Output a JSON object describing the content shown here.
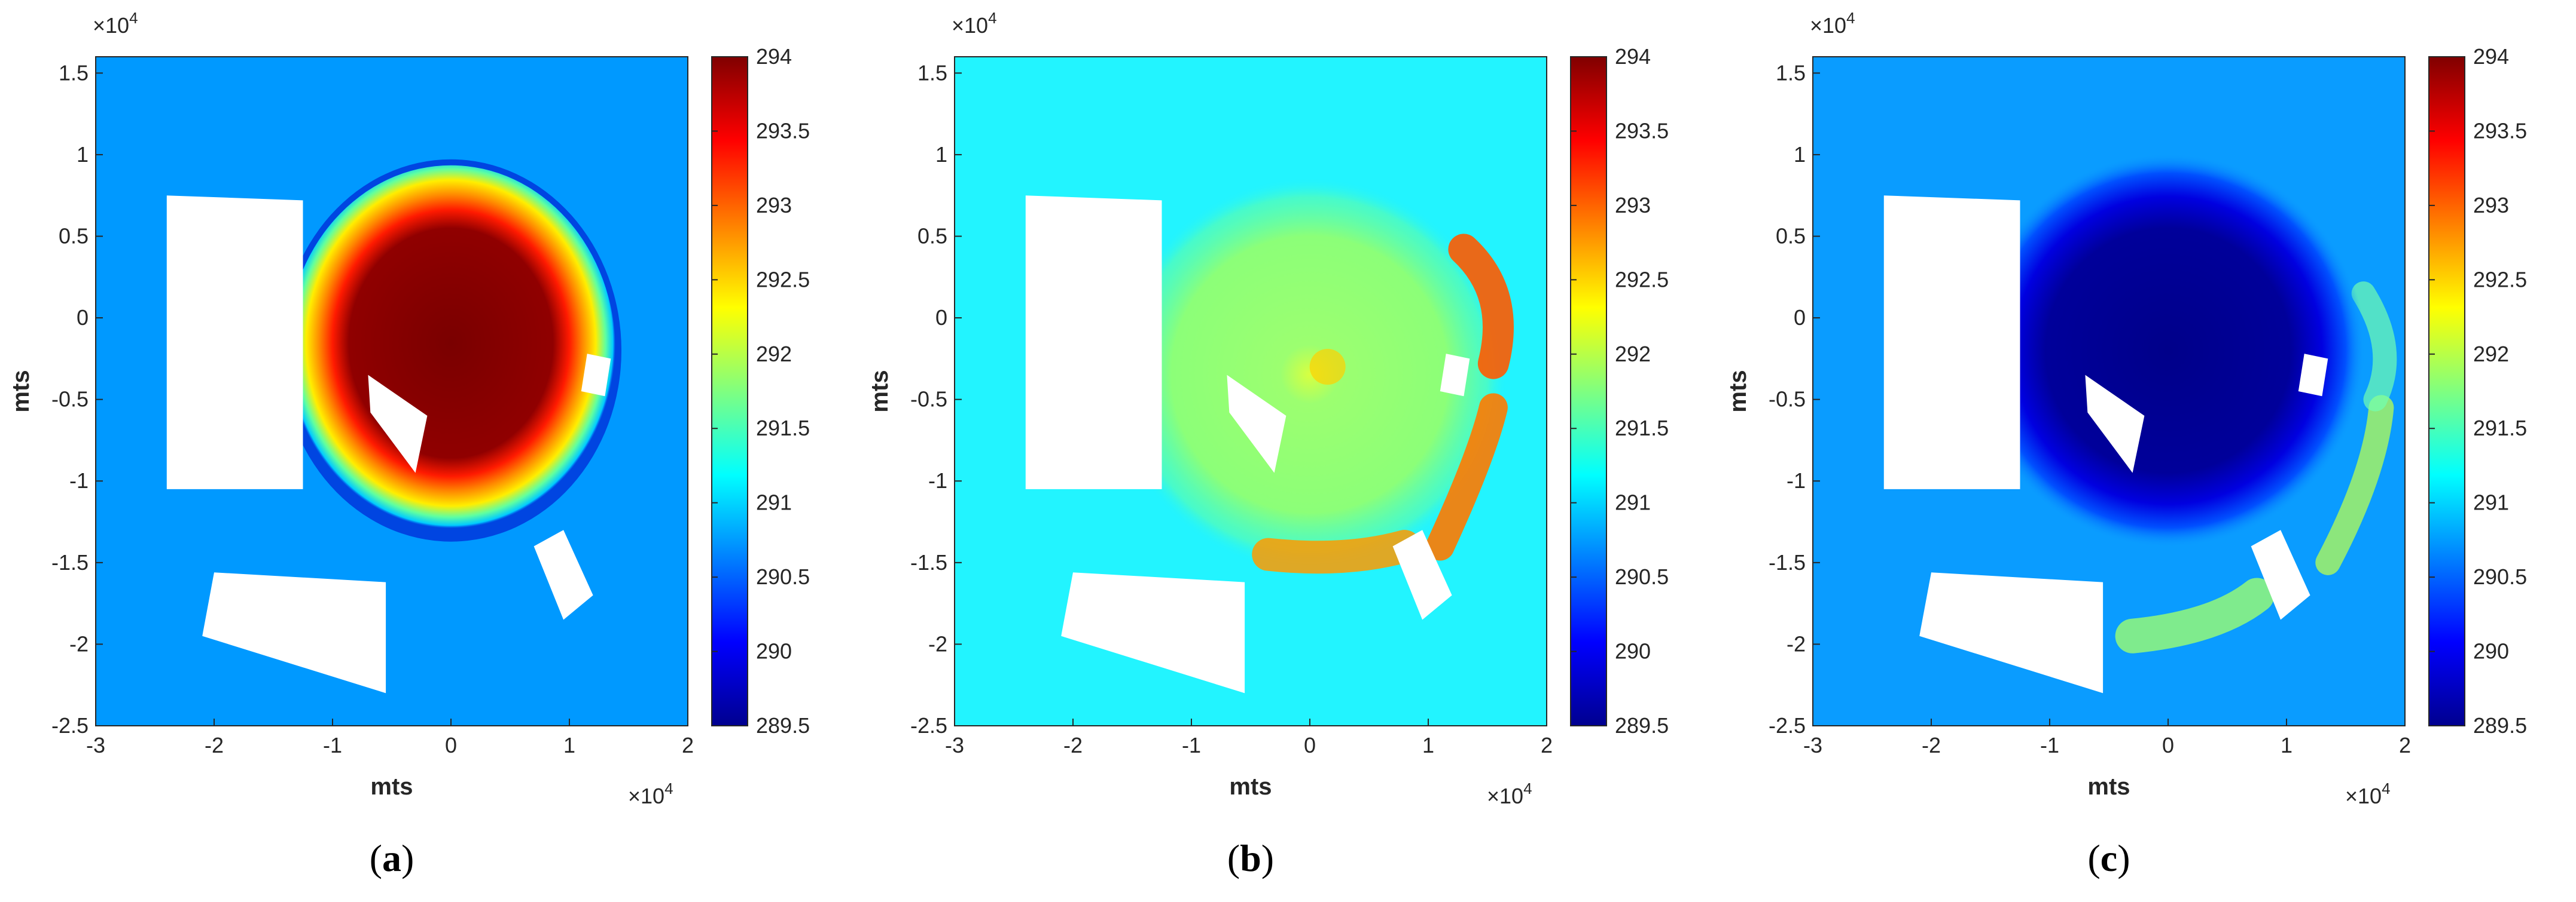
{
  "panels": [
    {
      "label": "a",
      "field": "hot_dome"
    },
    {
      "label": "b",
      "field": "ring_anomaly"
    },
    {
      "label": "c",
      "field": "cold_dome"
    }
  ],
  "axes": {
    "xlabel": "mts",
    "ylabel": "mts",
    "x_ticks": [
      "-3",
      "-2",
      "-1",
      "0",
      "1",
      "2"
    ],
    "y_ticks": [
      "1.5",
      "1",
      "0.5",
      "0",
      "-0.5",
      "-1",
      "-1.5",
      "-2",
      "-2.5"
    ],
    "x_exponent": "×10",
    "y_exponent": "×10",
    "exponent_power": "4",
    "xlim": [
      -30000,
      20000
    ],
    "ylim": [
      -25000,
      16000
    ]
  },
  "colorbar": {
    "ticks": [
      "294",
      "293.5",
      "293",
      "292.5",
      "292",
      "291.5",
      "291",
      "290.5",
      "290",
      "289.5"
    ],
    "range": [
      289.5,
      294
    ],
    "colormap": "jet"
  },
  "chart_data": [
    {
      "type": "heatmap",
      "title": "",
      "xlabel": "mts",
      "ylabel": "mts",
      "xlim": [
        -30000,
        20000
      ],
      "ylim": [
        -25000,
        16000
      ],
      "clim": [
        289.5,
        294
      ],
      "background_value": 290.8,
      "peak_value": 294,
      "feature": "warm dome centred near (0, -2000)"
    },
    {
      "type": "heatmap",
      "title": "",
      "xlabel": "mts",
      "ylabel": "mts",
      "xlim": [
        -30000,
        20000
      ],
      "ylim": [
        -25000,
        16000
      ],
      "clim": [
        289.5,
        294
      ],
      "background_value": 291.1,
      "peak_value": 292.8,
      "feature": "warm arc along the dome edge"
    },
    {
      "type": "heatmap",
      "title": "",
      "xlabel": "mts",
      "ylabel": "mts",
      "xlim": [
        -30000,
        20000
      ],
      "ylim": [
        -25000,
        16000
      ],
      "clim": [
        289.5,
        294
      ],
      "background_value": 290.8,
      "peak_value": 289.5,
      "feature": "cold dome centred near (0, -2000)"
    }
  ],
  "colors": {
    "jet_dark_red": "#800000",
    "jet_red": "#ff0000",
    "jet_yellow": "#ffff00",
    "jet_cyan": "#00ffff",
    "jet_blue": "#0000ff",
    "jet_dark_blue": "#00008f"
  }
}
